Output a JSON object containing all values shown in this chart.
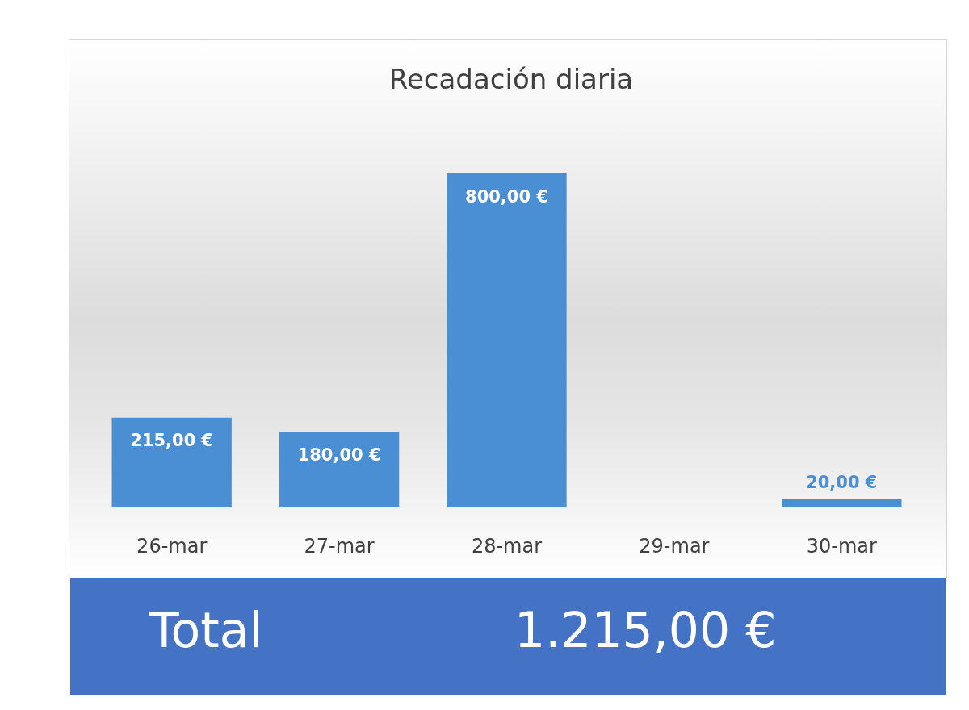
{
  "chart_data": {
    "type": "bar",
    "title": "Recadación diaria",
    "categories": [
      "26-mar",
      "27-mar",
      "28-mar",
      "29-mar",
      "30-mar"
    ],
    "values": [
      215,
      180,
      800,
      null,
      20
    ],
    "color": "#4a8ed4",
    "value_labels": [
      "215,00 €",
      "180,00 €",
      "800,00 €",
      null,
      "20,00 €"
    ],
    "annotations": [
      "Total",
      "1.215,00 €"
    ],
    "tick_labels": "x"
  }
}
